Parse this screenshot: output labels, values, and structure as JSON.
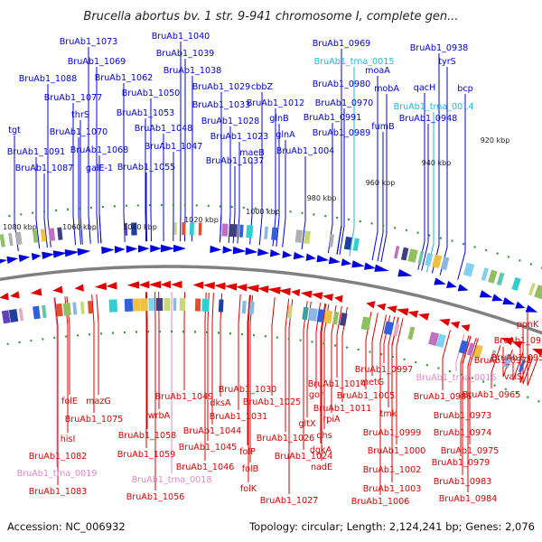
{
  "title": "Brucella abortus bv. 1 str. 9-941 chromosome I, complete gen...",
  "footer": {
    "accession": "Accession: NC_006932",
    "stats": "Topology: circular; Length: 2,124,241 bp; Genes: 2,076"
  },
  "colors": {
    "forward": "#0000e0",
    "reverse": "#e00000",
    "trna": "#20b8d8",
    "trna_reverse": "#e088c8",
    "backbone": "#808080",
    "tick": "#2a9a2a"
  },
  "scale_labels": [
    "920 kbp",
    "940 kbp",
    "960 kbp",
    "980 kbp",
    "1000 kbp",
    "1020 kbp",
    "1040 kbp",
    "1060 kbp",
    "1080 kbp"
  ],
  "top_labels": [
    "BruAb1_1073",
    "BruAb1_1040",
    "BruAb1_0969",
    "BruAb1_0938",
    "BruAb1_1069",
    "BruAb1_1039",
    "BruAb1_trna_0015",
    "tyrS",
    "BruAb1_1088",
    "BruAb1_1062",
    "BruAb1_1038",
    "moaA",
    "BruAb1_1077",
    "BruAb1_1050",
    "BruAb1_1029",
    "cbbZ",
    "BruAb1_0980",
    "mobA",
    "qacH",
    "bcp",
    "thrS",
    "BruAb1_1053",
    "BruAb1_1033",
    "BruAb1_1012",
    "BruAb1_0970",
    "BruAb1_trna_0014",
    "tgt",
    "BruAb1_1070",
    "BruAb1_1048",
    "BruAb1_1028",
    "glnB",
    "BruAb1_0991",
    "BruAb1_0948",
    "BruAb1_1091",
    "BruAb1_1068",
    "BruAb1_1047",
    "BruAb1_1023",
    "glnA",
    "BruAb1_0989",
    "fumB",
    "BruAb1_1087",
    "galE-1",
    "BruAb1_1055",
    "BruAb1_1037",
    "maeB",
    "BruAb1_1004"
  ],
  "bottom_labels": [
    "ppnK",
    "BruAb1_0954",
    "BruAb1_0971",
    "BruAb1_0956",
    "BruAb1_0997",
    "BruAb1_trna_0016",
    "valS",
    "folE",
    "mazG",
    "BruAb1_1049",
    "BruAb1_1030",
    "BruAb1_1014",
    "metG",
    "BruAb1_0986",
    "BruAb1_0965",
    "gor",
    "BruAb1_1005",
    "BruAb1_1075",
    "BruAb1_1025",
    "dksA",
    "BruAb1_1011",
    "tmk",
    "BruAb1_0973",
    "wrbA",
    "BruAb1_1031",
    "gltX",
    "rpiA",
    "BruAb1_0974",
    "BruAb1_1058",
    "BruAb1_1044",
    "dhs",
    "BruAb1_0999",
    "BruAb1_1045",
    "folP",
    "BruAb1_1026",
    "dgkA",
    "BruAb1_0975",
    "hisI",
    "BruAb1_1082",
    "BruAb1_1059",
    "BruAb1_1000",
    "BruAb1_1046",
    "folB",
    "BruAb1_1024",
    "nadE",
    "BruAb1_1002",
    "BruAb1_0979",
    "BruAb1_trna_0019",
    "BruAb1_trna_0018",
    "folK",
    "BruAb1_1003",
    "BruAb1_0983",
    "BruAb1_1083",
    "BruAb1_1056",
    "BruAb1_1027",
    "BruAb1_1006",
    "BruAb1_0984"
  ]
}
